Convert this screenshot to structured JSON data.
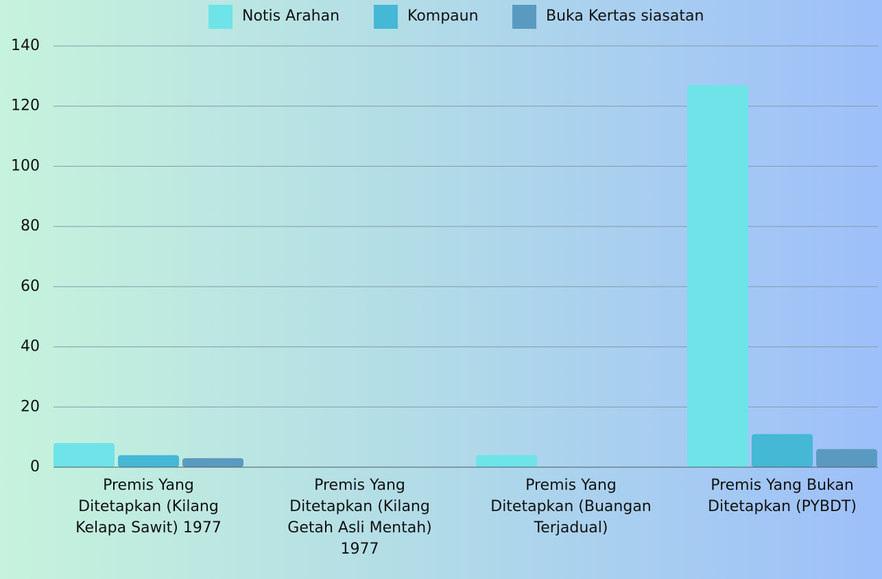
{
  "chart_data": {
    "type": "bar",
    "categories": [
      "Premis Yang Ditetapkan (Kilang Kelapa Sawit) 1977",
      "Premis Yang Ditetapkan (Kilang Getah Asli Mentah) 1977",
      "Premis Yang Ditetapkan (Buangan Terjadual)",
      "Premis Yang Bukan Ditetapkan (PYBDT)"
    ],
    "series": [
      {
        "name": "Notis Arahan",
        "color": "#6ee3e8",
        "values": [
          8,
          0,
          4,
          127
        ]
      },
      {
        "name": "Kompaun",
        "color": "#45b8d6",
        "values": [
          4,
          0,
          0,
          11
        ]
      },
      {
        "name": "Buka Kertas siasatan",
        "color": "#5b9ac0",
        "values": [
          3,
          0,
          0,
          6
        ]
      }
    ],
    "ylim": [
      0,
      140
    ],
    "yticks": [
      0,
      20,
      40,
      60,
      80,
      100,
      120,
      140
    ],
    "grid": true,
    "legend": "top"
  }
}
